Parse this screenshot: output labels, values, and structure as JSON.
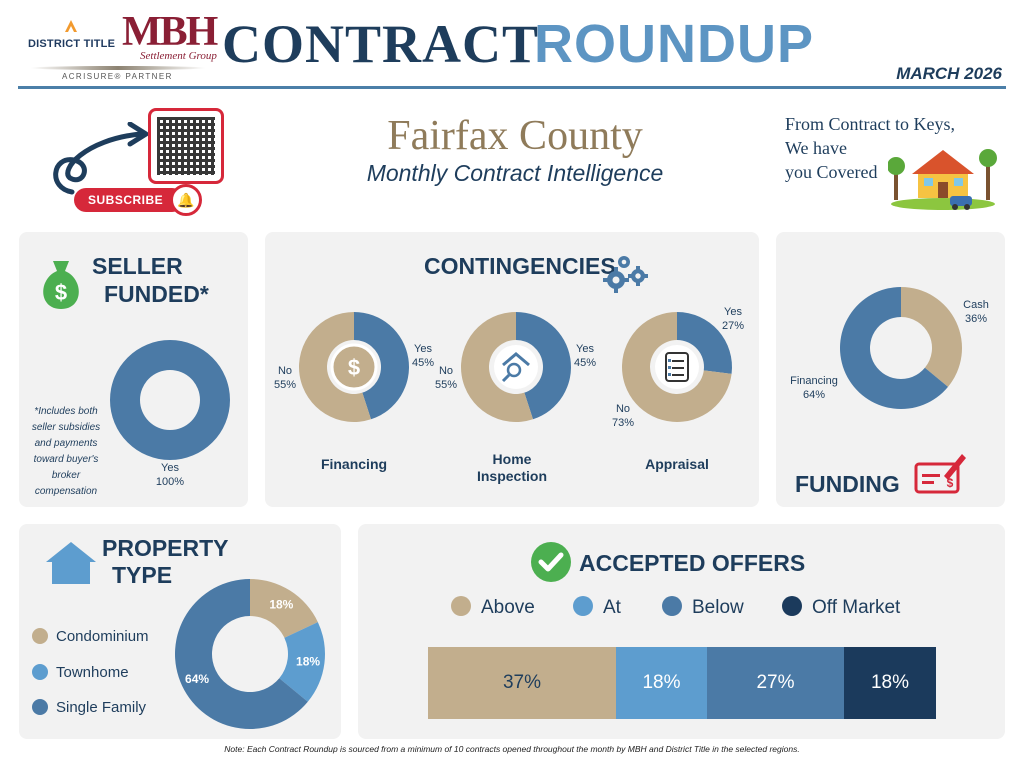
{
  "header": {
    "brand_district": "DISTRICT TITLE",
    "brand_mbh": "MBH",
    "brand_mbh_sub": "Settlement Group",
    "brand_partner": "ACRISURE® PARTNER",
    "title_part1": "CONTRACT",
    "title_part2": "ROUNDUP",
    "month": "MARCH 2026"
  },
  "intro": {
    "subscribe_label": "SUBSCRIBE",
    "county": "Fairfax County",
    "subtitle": "Monthly Contract Intelligence",
    "tagline": [
      "From Contract to Keys,",
      "We have",
      "you Covered"
    ]
  },
  "colors": {
    "tan": "#c2ae8d",
    "light_blue": "#5d9dcf",
    "mid_blue": "#4b7aa6",
    "dark_blue": "#1b3a5c",
    "navy": "#1e3d5c"
  },
  "seller_funded": {
    "title_line1": "SELLER",
    "title_line2": "FUNDED*",
    "note": "*Includes both seller subsidies and payments toward buyer's broker compensation"
  },
  "contingencies": {
    "title": "CONTINGENCIES"
  },
  "funding": {
    "title": "FUNDING"
  },
  "property_type": {
    "title_line1": "PROPERTY",
    "title_line2": "TYPE"
  },
  "accepted_offers": {
    "title": "ACCEPTED OFFERS"
  },
  "chart_data": [
    {
      "id": "seller_funded",
      "type": "pie",
      "slices": [
        {
          "label": "Yes",
          "value": 100,
          "display": "100%"
        }
      ]
    },
    {
      "id": "financing",
      "type": "pie",
      "caption": "Financing",
      "slices": [
        {
          "label": "Yes",
          "value": 45,
          "display": "45%"
        },
        {
          "label": "No",
          "value": 55,
          "display": "55%"
        }
      ]
    },
    {
      "id": "home_inspection",
      "type": "pie",
      "caption": "Home Inspection",
      "slices": [
        {
          "label": "Yes",
          "value": 45,
          "display": "45%"
        },
        {
          "label": "No",
          "value": 55,
          "display": "55%"
        }
      ]
    },
    {
      "id": "appraisal",
      "type": "pie",
      "caption": "Appraisal",
      "slices": [
        {
          "label": "Yes",
          "value": 27,
          "display": "27%"
        },
        {
          "label": "No",
          "value": 73,
          "display": "73%"
        }
      ]
    },
    {
      "id": "funding",
      "type": "pie",
      "slices": [
        {
          "label": "Cash",
          "value": 36,
          "display": "36%"
        },
        {
          "label": "Financing",
          "value": 64,
          "display": "64%"
        }
      ]
    },
    {
      "id": "property_type",
      "type": "pie",
      "slices": [
        {
          "label": "Condominium",
          "value": 18,
          "display": "18%"
        },
        {
          "label": "Townhome",
          "value": 18,
          "display": "18%"
        },
        {
          "label": "Single Family",
          "value": 64,
          "display": "64%"
        }
      ]
    },
    {
      "id": "accepted_offers",
      "type": "bar",
      "orientation": "horizontal-stacked",
      "series": [
        {
          "name": "Above",
          "value": 37,
          "display": "37%"
        },
        {
          "name": "At",
          "value": 18,
          "display": "18%"
        },
        {
          "name": "Below",
          "value": 27,
          "display": "27%"
        },
        {
          "name": "Off Market",
          "value": 18,
          "display": "18%"
        }
      ]
    }
  ],
  "note": "Note: Each Contract Roundup is sourced from a minimum of 10 contracts opened throughout the month by MBH and District Title in the selected regions."
}
